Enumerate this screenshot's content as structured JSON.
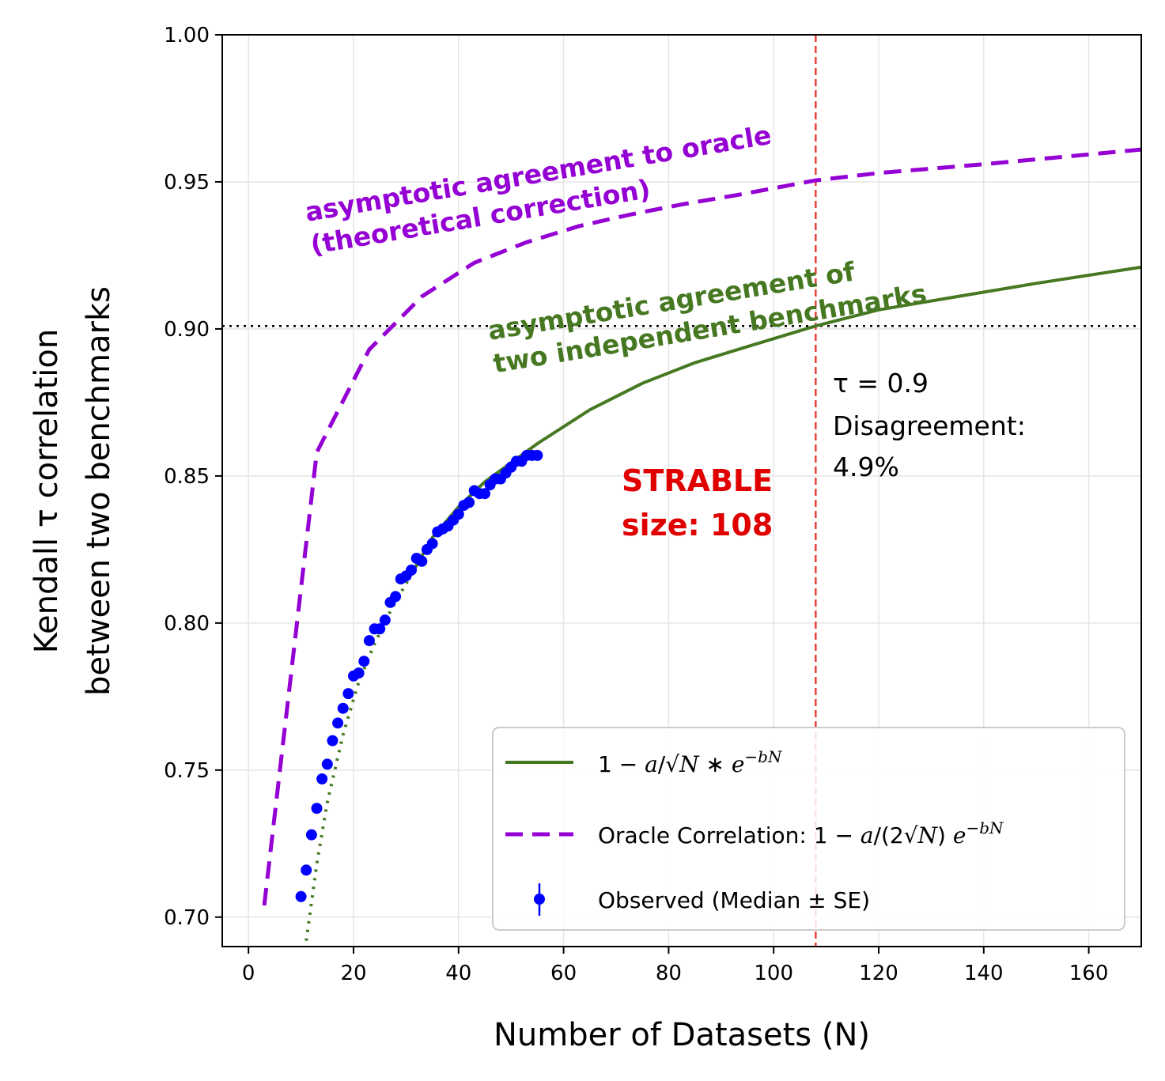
{
  "chart_data": {
    "type": "line",
    "xlabel": "Number of Datasets (N)",
    "ylabel_line1": "Kendall τ correlation",
    "ylabel_line2": "between two benchmarks",
    "xlim": [
      -5,
      170
    ],
    "ylim": [
      0.69,
      1.0
    ],
    "xticks": [
      0,
      20,
      40,
      60,
      80,
      100,
      120,
      140,
      160
    ],
    "yticks": [
      0.7,
      0.75,
      0.8,
      0.85,
      0.9,
      0.95,
      1.0
    ],
    "xtick_labels": [
      "0",
      "20",
      "40",
      "60",
      "80",
      "100",
      "120",
      "140",
      "160"
    ],
    "ytick_labels": [
      "0.70",
      "0.75",
      "0.80",
      "0.85",
      "0.90",
      "0.95",
      "1.00"
    ],
    "grid": true,
    "legend_position": "lower-right",
    "series": [
      {
        "key": "fit",
        "style": "solid",
        "color": "#467821",
        "x": [
          31,
          35,
          40,
          45,
          50,
          55,
          65,
          75,
          85,
          95,
          108,
          120,
          135,
          150,
          170
        ],
        "y": [
          0.8165,
          0.829,
          0.8395,
          0.848,
          0.8545,
          0.861,
          0.8725,
          0.8815,
          0.8885,
          0.894,
          0.901,
          0.9065,
          0.911,
          0.9155,
          0.921
        ]
      },
      {
        "key": "fit_extrapolated",
        "style": "dotted",
        "color": "#467821",
        "x": [
          11,
          13,
          15,
          18,
          21,
          24,
          27,
          31
        ],
        "y": [
          0.692,
          0.718,
          0.739,
          0.762,
          0.78,
          0.793,
          0.804,
          0.8165
        ]
      },
      {
        "key": "oracle",
        "style": "dashed",
        "color": "#9400d3",
        "x": [
          3,
          13,
          23,
          33,
          43,
          53,
          63,
          73,
          83,
          93,
          108,
          120,
          140,
          170
        ],
        "y": [
          0.704,
          0.858,
          0.893,
          0.911,
          0.9225,
          0.9295,
          0.935,
          0.939,
          0.9425,
          0.9455,
          0.9505,
          0.953,
          0.956,
          0.961
        ]
      },
      {
        "key": "observed",
        "style": "points",
        "color": "#0000ff",
        "x": [
          10,
          11,
          12,
          13,
          14,
          15,
          16,
          17,
          18,
          19,
          20,
          21,
          22,
          23,
          24,
          25,
          26,
          27,
          28,
          29,
          30,
          31,
          32,
          33,
          34,
          35,
          36,
          37,
          38,
          39,
          40,
          41,
          42,
          43,
          44,
          45,
          46,
          47,
          48,
          49,
          50,
          51,
          52,
          53,
          54,
          55
        ],
        "y": [
          0.707,
          0.716,
          0.728,
          0.737,
          0.747,
          0.752,
          0.76,
          0.766,
          0.771,
          0.776,
          0.782,
          0.783,
          0.787,
          0.794,
          0.798,
          0.798,
          0.801,
          0.807,
          0.809,
          0.815,
          0.816,
          0.818,
          0.822,
          0.821,
          0.825,
          0.827,
          0.831,
          0.832,
          0.833,
          0.835,
          0.837,
          0.84,
          0.841,
          0.845,
          0.844,
          0.844,
          0.847,
          0.849,
          0.849,
          0.851,
          0.853,
          0.855,
          0.855,
          0.857,
          0.857,
          0.857
        ]
      }
    ],
    "reference_lines": {
      "vertical_x": 108,
      "vertical_color": "#e8403a",
      "horizontal_y": 0.901,
      "horizontal_color": "#000000"
    },
    "legend": {
      "fit_label": "1 − a/√N ∗ e^(−bN)",
      "oracle_label": "Oracle Correlation: 1 − a/(2√N) e^(−bN)",
      "observed_label": "Observed (Median ± SE)"
    },
    "annotations": {
      "oracle_line1": "asymptotic agreement to oracle",
      "oracle_line2": "(theoretical correction)",
      "fit_line1": "asymptotic agreement of",
      "fit_line2": "two independent benchmarks",
      "strable_line1": "STRABLE",
      "strable_line2": "size: 108",
      "tau_line1": "τ = 0.9",
      "tau_line2": "Disagreement:",
      "tau_line3": "4.9%"
    }
  }
}
